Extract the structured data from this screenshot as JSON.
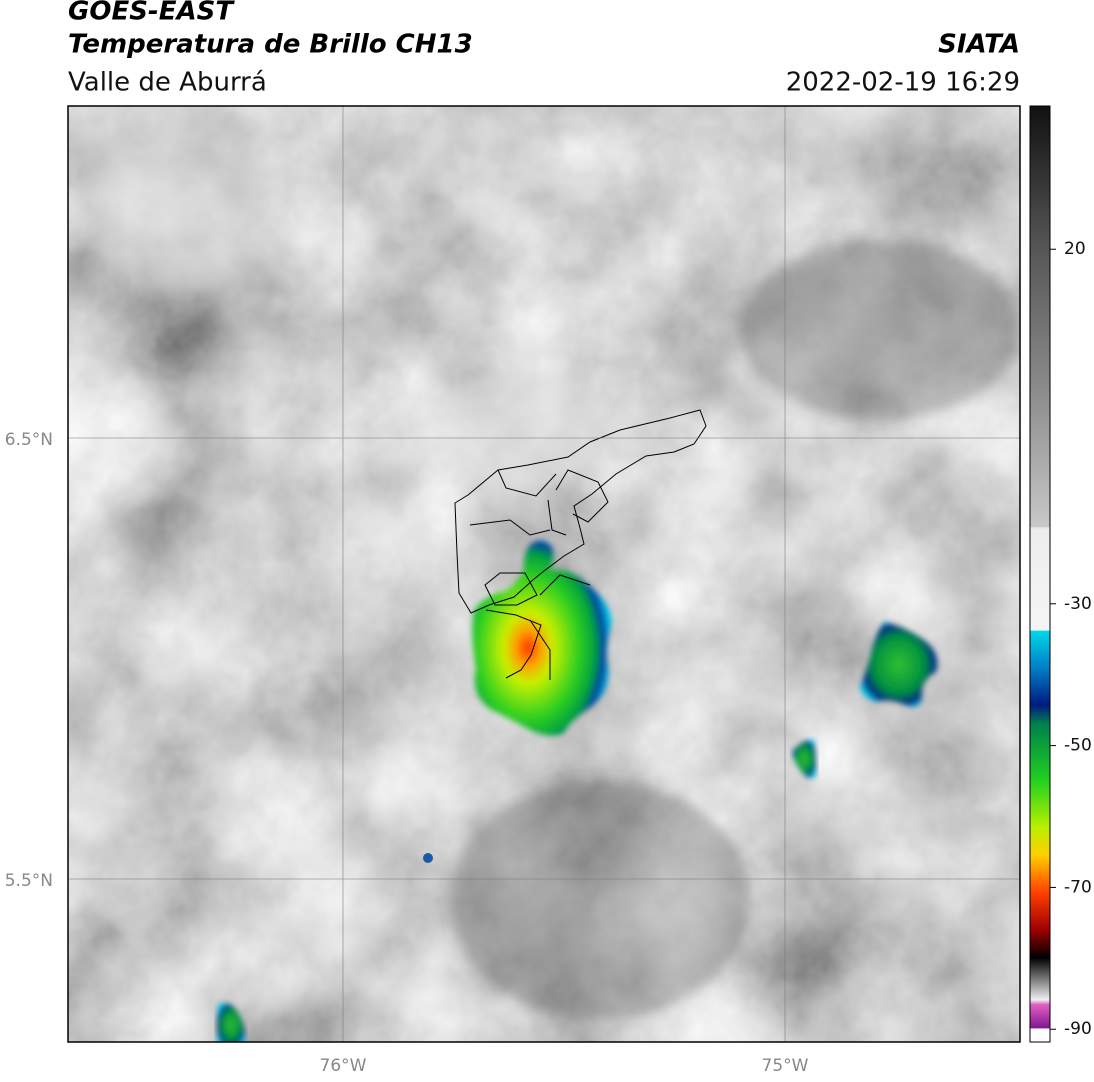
{
  "header": {
    "title": "GOES-EAST",
    "subtitle": "Temperatura de Brillo CH13",
    "region": "Valle de Aburrá",
    "source": "SIATA",
    "datetime": "2022-02-19 16:29"
  },
  "map": {
    "lat_labels": [
      "6.5°N",
      "5.5°N"
    ],
    "lon_labels": [
      "76°W",
      "75°W"
    ]
  },
  "colorbar": {
    "range": [
      40.2,
      -91.8
    ],
    "ticks": [
      20,
      -30,
      -50,
      -70,
      -90
    ]
  }
}
